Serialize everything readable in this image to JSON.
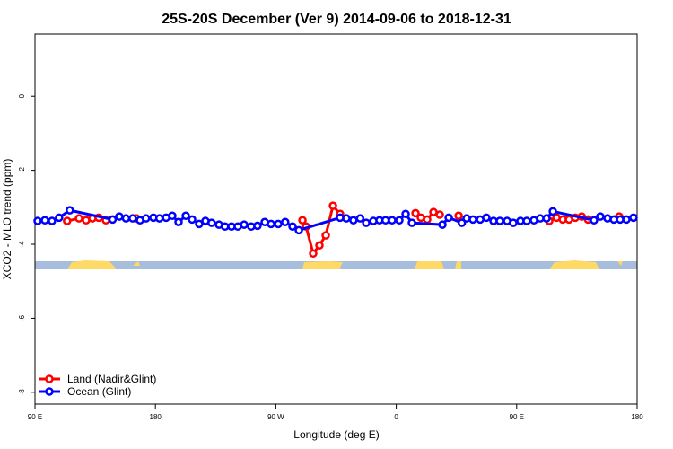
{
  "chart_data": {
    "type": "line",
    "title": "25S-20S December (Ver 9)   2014-09-06 to 2018-12-31",
    "x_label": "Longitude (deg E)",
    "y_label": "XCO2 - MLO trend (ppm)",
    "xlim": [
      90,
      540
    ],
    "ylim": [
      -8.32,
      1.68
    ],
    "xticks": [
      {
        "value": 90,
        "label": "90 E"
      },
      180,
      {
        "value": 270,
        "label": "90 W"
      },
      {
        "value": 360,
        "label": "0"
      },
      {
        "value": 450,
        "label": "90 E"
      },
      {
        "value": 540,
        "label": "180"
      }
    ],
    "yticks": [
      -8,
      -6,
      -4,
      -2,
      0
    ],
    "legend": "bottom-left",
    "series": [
      {
        "name": "Land (Nadir&Glint)",
        "color": "#ff0000",
        "x": [
          114,
          122.9,
          128.2,
          132.9,
          137.6,
          143,
          null,
          165.8,
          null,
          289.9,
          292.6,
          297.9,
          302.6,
          307.3,
          312.7,
          318,
          null,
          374.4,
          378.4,
          383.1,
          387.8,
          392.5,
          null,
          406.6,
          null,
          474.3,
          479.7,
          484.4,
          489.1,
          493.8,
          498.6,
          503.3,
          null,
          526.6
        ],
        "values": [
          -3.37,
          -3.3,
          -3.35,
          -3.3,
          -3.28,
          -3.35,
          null,
          -3.3,
          null,
          -3.35,
          -3.52,
          -4.25,
          -4.03,
          -3.76,
          -2.96,
          -3.18,
          null,
          -3.16,
          -3.28,
          -3.33,
          -3.13,
          -3.2,
          null,
          -3.23,
          null,
          -3.37,
          -3.28,
          -3.33,
          -3.33,
          -3.28,
          -3.25,
          -3.33,
          null,
          -3.25
        ]
      },
      {
        "name": "Ocean (Glint)",
        "color": "#0000ff",
        "x": [
          92,
          97.4,
          102.7,
          108,
          116,
          148,
          153,
          158,
          163,
          168.5,
          173,
          178.5,
          183,
          188,
          192.6,
          197.3,
          202.7,
          207.4,
          212.7,
          217.4,
          222,
          227.5,
          232,
          236.9,
          241.6,
          246.3,
          251.6,
          256.3,
          261.7,
          266.4,
          271.8,
          277,
          282.5,
          287.2,
          318,
          322.7,
          328,
          333,
          337.5,
          342.9,
          347.5,
          352,
          356.9,
          362.3,
          367,
          371.7,
          394.5,
          399.2,
          409,
          412.6,
          417.3,
          422.7,
          427.3,
          432.7,
          437.4,
          442.8,
          447.5,
          452.8,
          457.5,
          462.9,
          467.6,
          472.3,
          477,
          507.8,
          512.5,
          517.9,
          522.6,
          527.3,
          532,
          537.3
        ],
        "values": [
          -3.37,
          -3.35,
          -3.37,
          -3.28,
          -3.08,
          -3.33,
          -3.25,
          -3.3,
          -3.3,
          -3.35,
          -3.3,
          -3.28,
          -3.3,
          -3.28,
          -3.23,
          -3.4,
          -3.23,
          -3.33,
          -3.45,
          -3.37,
          -3.42,
          -3.47,
          -3.52,
          -3.52,
          -3.52,
          -3.47,
          -3.52,
          -3.5,
          -3.4,
          -3.45,
          -3.45,
          -3.4,
          -3.52,
          -3.62,
          -3.28,
          -3.3,
          -3.35,
          -3.3,
          -3.42,
          -3.37,
          -3.35,
          -3.35,
          -3.35,
          -3.35,
          -3.18,
          -3.42,
          -3.47,
          -3.28,
          -3.42,
          -3.3,
          -3.33,
          -3.33,
          -3.28,
          -3.37,
          -3.37,
          -3.37,
          -3.42,
          -3.37,
          -3.37,
          -3.35,
          -3.3,
          -3.3,
          -3.11,
          -3.35,
          -3.25,
          -3.3,
          -3.33,
          -3.33,
          -3.33,
          -3.28
        ]
      }
    ]
  }
}
